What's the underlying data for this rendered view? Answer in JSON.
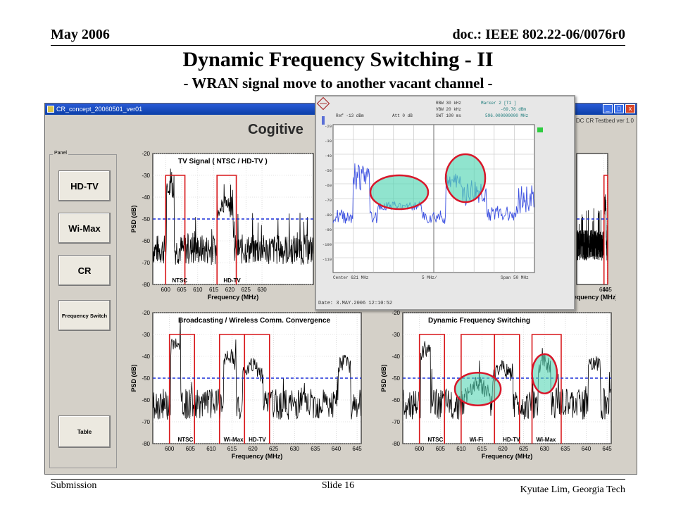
{
  "slide": {
    "header_left": "May 2006",
    "header_right": "doc.: IEEE 802.22-06/0076r0",
    "title": "Dynamic Frequency Switching - II",
    "subtitle": "- WRAN signal move to another vacant channel -",
    "footer_left": "Submission",
    "footer_center": "Slide 16",
    "footer_right": "Kyutae Lim, Georgia Tech"
  },
  "window": {
    "title": "CR_concept_20060501_ver01",
    "app_heading": "Cogitive",
    "app_right_label": "DC CR Testbed ver 1.0",
    "controls": [
      "_",
      "□",
      "x"
    ]
  },
  "panel": {
    "label": "Panel",
    "buttons": [
      {
        "label": "HD-TV"
      },
      {
        "label": "Wi-Max"
      },
      {
        "label": "CR"
      },
      {
        "label": "Frequency Switch"
      },
      {
        "label": "Table"
      }
    ]
  },
  "analyzer": {
    "ref": "Ref -13 dBm",
    "att": "Att  0 dB",
    "rbw": "RBW 30 kHz",
    "vbw": "VBW 20 kHz",
    "swt": "SWT 100 ms",
    "marker": "Marker 2 [T1 ]",
    "marker_level": "-69.76 dBm",
    "marker_freq": "596.000000000 MHz",
    "center": "Center  621 MHz",
    "div": "5 MHz/",
    "span": "Span  50 MHz",
    "date": "Date: 3.MAY.2006  12:10:52",
    "y_ticks": [
      "-20",
      "-30",
      "-40",
      "-50",
      "-60",
      "-70",
      "-80",
      "-90",
      "-100",
      "-110"
    ]
  },
  "chart_data": [
    {
      "type": "line",
      "title": "TV Signal ( NTSC / HD-TV )",
      "xlabel": "Frequency (MHz)",
      "ylabel": "PSD (dB)",
      "xlim": [
        596,
        646
      ],
      "ylim": [
        -80,
        -20
      ],
      "x_ticks": [
        600,
        605,
        610,
        615,
        620,
        625,
        630
      ],
      "y_ticks": [
        -20,
        -30,
        -40,
        -50,
        -60,
        -70,
        -80
      ],
      "threshold": -50,
      "channels": [
        {
          "x0": 600,
          "x1": 606
        },
        {
          "x0": 616,
          "x1": 622
        }
      ],
      "channel_labels": [
        {
          "text": "NTSC",
          "x": 602
        },
        {
          "text": "HD-TV",
          "x": 618
        }
      ],
      "peaks": [
        {
          "x": 601.5,
          "level": -35,
          "w": 1.2
        },
        {
          "x": 618.5,
          "level": -42,
          "w": 2.5
        }
      ],
      "noise": -64
    },
    {
      "type": "line",
      "title": "",
      "xlabel": "Frequency (MHz)",
      "ylabel": "",
      "xlim": [
        596,
        646
      ],
      "ylim": [
        -80,
        -20
      ],
      "x_ticks": [
        640,
        645
      ],
      "y_ticks": [],
      "threshold": -50,
      "channels": [
        {
          "x0": 640,
          "x1": 646
        }
      ],
      "channel_labels": [],
      "peaks": [
        {
          "x": 642,
          "level": -42,
          "w": 1.5
        }
      ],
      "noise": -62
    },
    {
      "type": "line",
      "title": "Broadcasting / Wireless Comm. Convergence",
      "xlabel": "Frequency (MHz)",
      "ylabel": "PSD (dB)",
      "xlim": [
        596,
        646
      ],
      "ylim": [
        -80,
        -20
      ],
      "x_ticks": [
        600,
        605,
        610,
        615,
        620,
        625,
        630,
        635,
        640,
        645
      ],
      "y_ticks": [
        -20,
        -30,
        -40,
        -50,
        -60,
        -70,
        -80
      ],
      "threshold": -50,
      "channels": [
        {
          "x0": 600,
          "x1": 606
        },
        {
          "x0": 612,
          "x1": 618
        },
        {
          "x0": 618,
          "x1": 624
        }
      ],
      "channel_labels": [
        {
          "text": "NTSC",
          "x": 602
        },
        {
          "text": "Wi-Max",
          "x": 613
        },
        {
          "text": "HD-TV",
          "x": 619
        }
      ],
      "peaks": [
        {
          "x": 601.5,
          "level": -34,
          "w": 1.2
        },
        {
          "x": 614.5,
          "level": -40,
          "w": 1.5
        },
        {
          "x": 620,
          "level": -44,
          "w": 2.5
        },
        {
          "x": 642,
          "level": -42,
          "w": 1.5
        }
      ],
      "noise": -62
    },
    {
      "type": "line",
      "title": "Dynamic Frequency Switching",
      "xlabel": "Frequency (MHz)",
      "ylabel": "PSD (dB)",
      "xlim": [
        596,
        646
      ],
      "ylim": [
        -80,
        -20
      ],
      "x_ticks": [
        600,
        605,
        610,
        615,
        620,
        625,
        630,
        635,
        640,
        645
      ],
      "y_ticks": [
        -20,
        -30,
        -40,
        -50,
        -60,
        -70,
        -80
      ],
      "threshold": -50,
      "channels": [
        {
          "x0": 600,
          "x1": 606
        },
        {
          "x0": 610,
          "x1": 618
        },
        {
          "x0": 618,
          "x1": 624
        },
        {
          "x0": 627,
          "x1": 634
        }
      ],
      "channel_labels": [
        {
          "text": "NTSC",
          "x": 602
        },
        {
          "text": "Wi-Fi",
          "x": 612
        },
        {
          "text": "HD-TV",
          "x": 620
        },
        {
          "text": "Wi-Max",
          "x": 628
        }
      ],
      "peaks": [
        {
          "x": 601.5,
          "level": -36,
          "w": 1.2
        },
        {
          "x": 614,
          "level": -52,
          "w": 3
        },
        {
          "x": 620,
          "level": -45,
          "w": 2.5
        },
        {
          "x": 630,
          "level": -42,
          "w": 1.5
        },
        {
          "x": 642,
          "level": -42,
          "w": 1.5
        }
      ],
      "noise": -62
    }
  ]
}
